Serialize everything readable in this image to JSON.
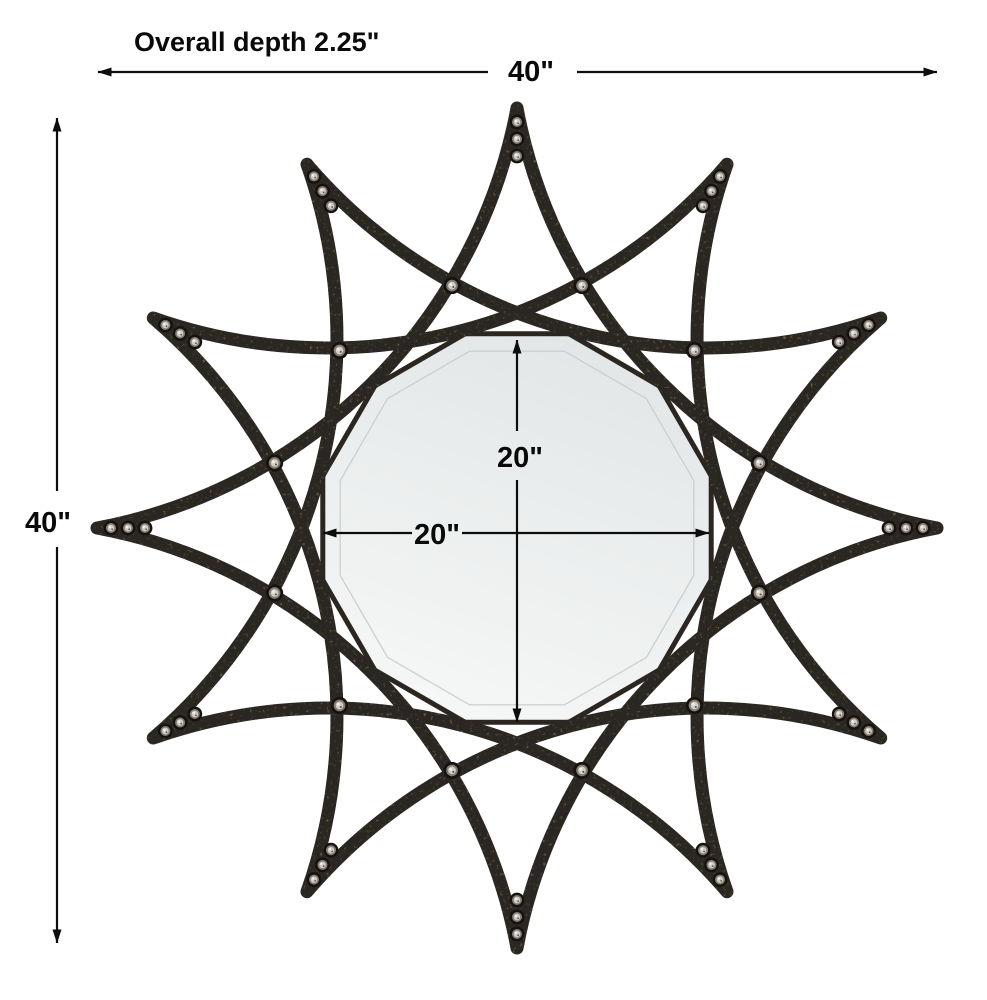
{
  "diagram": {
    "depth_note": "Overall depth 2.25\"",
    "overall_width": "40\"",
    "overall_height": "40\"",
    "mirror_width": "20\"",
    "mirror_height": "20\"",
    "colors": {
      "background": "#ffffff",
      "dimension_line": "#0d0d0d",
      "text": "#0a0a0a",
      "frame": "#2c2621",
      "frame_speckle": "#93876f",
      "rivet_dark": "#15120f",
      "rivet_ring": "#847c72",
      "rivet_light": "#cfccc5",
      "mirror_top": "#e2e6e7",
      "mirror_mid": "#ebeeee",
      "mirror_bottom": "#f6f7f7",
      "mirror_bevel": "#c6cccd"
    }
  }
}
